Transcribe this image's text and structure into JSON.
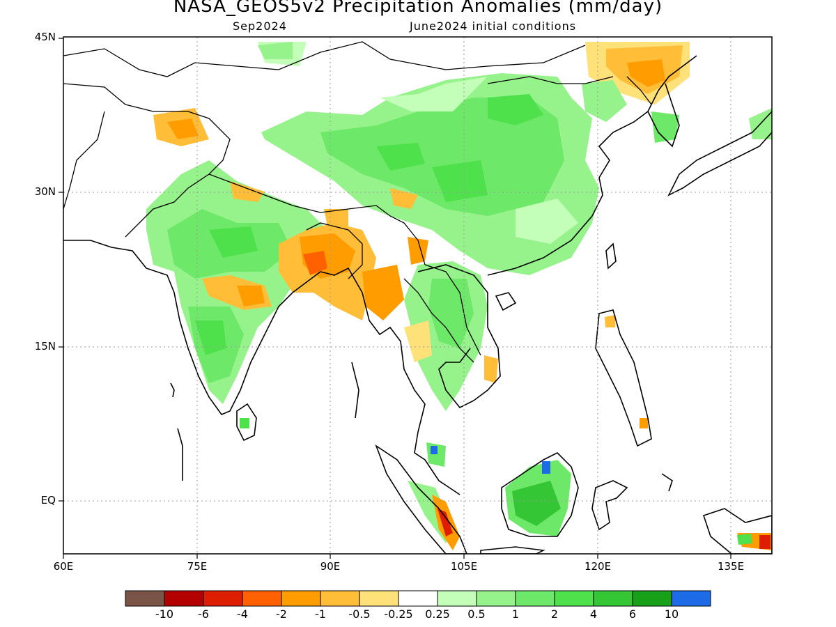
{
  "title": "NASA_GEOS5v2 Precipitation Anomalies (mm/day)",
  "subtitle_left": "Sep2024",
  "subtitle_right": "June2024 initial conditions",
  "map": {
    "lon_range": [
      60,
      140
    ],
    "lat_range": [
      -6,
      45
    ],
    "lat_ticks": [
      "45N",
      "30N",
      "15N",
      "EQ"
    ],
    "lon_ticks": [
      "60E",
      "75E",
      "90E",
      "105E",
      "120E",
      "135E"
    ],
    "gridlines": "dotted"
  },
  "colorbar": {
    "labels": [
      "-10",
      "-6",
      "-4",
      "-2",
      "-1",
      "-0.5",
      "-0.25",
      "0.25",
      "0.5",
      "1",
      "2",
      "4",
      "6",
      "10"
    ],
    "colors": [
      "#7a5446",
      "#b30000",
      "#dd1e00",
      "#ff6000",
      "#ff9d00",
      "#ffbd38",
      "#ffe179",
      "#ffffff",
      "#c4ffba",
      "#96f28a",
      "#6ee868",
      "#4ee14c",
      "#35c635",
      "#19a019",
      "#1e6be8"
    ]
  }
}
